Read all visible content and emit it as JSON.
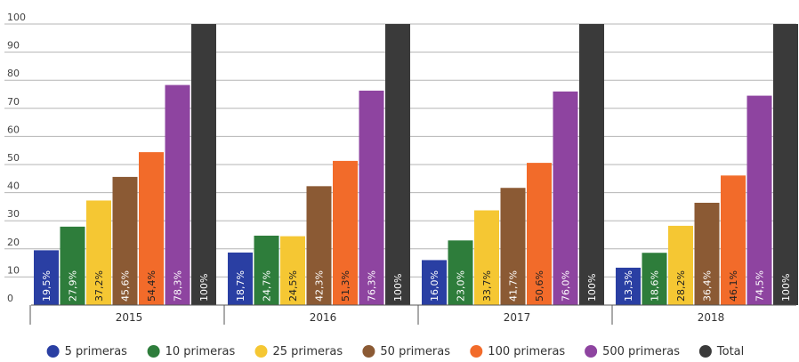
{
  "chart_data": {
    "type": "bar",
    "categories": [
      "2015",
      "2016",
      "2017",
      "2018"
    ],
    "series": [
      {
        "name": "5 primeras",
        "color": "#2a3fa3",
        "values": [
          19.5,
          18.7,
          16.0,
          13.3
        ],
        "labels": [
          "19,5%",
          "18,7%",
          "16,0%",
          "13,3%"
        ],
        "label_color": "#ffffff"
      },
      {
        "name": "10 primeras",
        "color": "#2e7d3b",
        "values": [
          27.9,
          24.7,
          23.0,
          18.6
        ],
        "labels": [
          "27,9%",
          "24,7%",
          "23,0%",
          "18,6%"
        ],
        "label_color": "#ffffff"
      },
      {
        "name": "25 primeras",
        "color": "#f5c733",
        "values": [
          37.2,
          24.5,
          33.7,
          28.2
        ],
        "labels": [
          "37,2%",
          "24,5%",
          "33,7%",
          "28,2%"
        ],
        "label_color": "#222222"
      },
      {
        "name": "50 primeras",
        "color": "#8b5a34",
        "values": [
          45.6,
          42.3,
          41.7,
          36.4
        ],
        "labels": [
          "45,6%",
          "42,3%",
          "41,7%",
          "36,4%"
        ],
        "label_color": "#ffffff"
      },
      {
        "name": "100 primeras",
        "color": "#f26b2a",
        "values": [
          54.4,
          51.3,
          50.6,
          46.1
        ],
        "labels": [
          "54,4%",
          "51,3%",
          "50,6%",
          "46,1%"
        ],
        "label_color": "#222222"
      },
      {
        "name": "500 primeras",
        "color": "#8e44a0",
        "values": [
          78.3,
          76.3,
          76.0,
          74.5
        ],
        "labels": [
          "78,3%",
          "76,3%",
          "76,0%",
          "74,5%"
        ],
        "label_color": "#ffffff"
      },
      {
        "name": "Total",
        "color": "#3a3a3a",
        "values": [
          100,
          100,
          100,
          100
        ],
        "labels": [
          "100%",
          "100%",
          "100%",
          "100%"
        ],
        "label_color": "#ffffff"
      }
    ],
    "yticks": [
      "0",
      "10",
      "20",
      "30",
      "40",
      "50",
      "60",
      "70",
      "80",
      "90",
      "100"
    ],
    "ylim": [
      0,
      100
    ],
    "grid": true,
    "legend_position": "bottom"
  }
}
